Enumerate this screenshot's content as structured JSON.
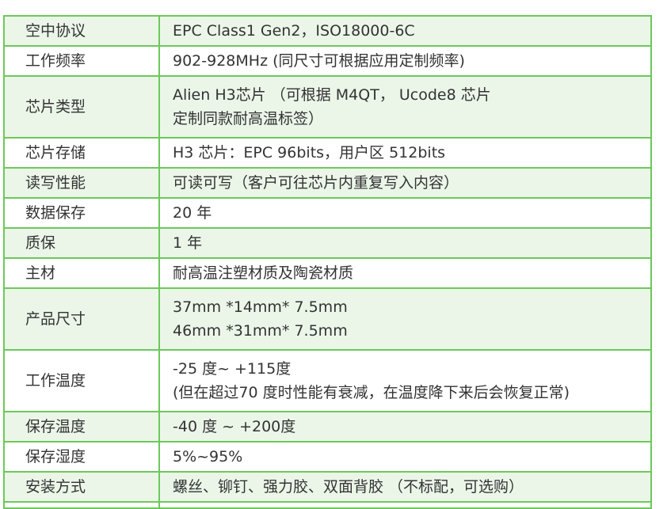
{
  "rows": [
    {
      "label": "空中协议",
      "lines": [
        "EPC Class1  Gen2，ISO18000-6C"
      ]
    },
    {
      "label": "工作频率",
      "lines": [
        "902-928MHz (同尺寸可根据应用定制频率)"
      ]
    },
    {
      "label": "芯片类型",
      "lines": [
        "Alien H3芯片 （可根据  M4QT， Ucode8 芯片",
        "定制同款耐高温标签）"
      ]
    },
    {
      "label": "芯片存储",
      "lines": [
        "H3 芯片：EPC 96bits，用户区  512bits"
      ]
    },
    {
      "label": "读写性能",
      "lines": [
        "可读可写（客户可往芯片内重复写入内容）"
      ]
    },
    {
      "label": "数据保存",
      "lines": [
        "20 年"
      ]
    },
    {
      "label": "质保",
      "lines": [
        "1 年"
      ]
    },
    {
      "label": "主材",
      "lines": [
        "耐高温注塑材质及陶瓷材质"
      ]
    },
    {
      "label": "产品尺寸",
      "lines": [
        "37mm *14mm* 7.5mm",
        "46mm *31mm* 7.5mm"
      ]
    },
    {
      "label": "工作温度",
      "lines": [
        "-25 度~ +115度",
        "(但在超过70 度时性能有衰减，在温度降下来后会恢复正常)"
      ]
    },
    {
      "label": "保存温度",
      "lines": [
        "-40 度 ~ +200度"
      ]
    },
    {
      "label": "保存湿度",
      "lines": [
        "5%~95%"
      ]
    },
    {
      "label": "安装方式",
      "lines": [
        "螺丝、铆钉、强力胶、双面背胶  （不标配，可选购）"
      ]
    }
  ]
}
